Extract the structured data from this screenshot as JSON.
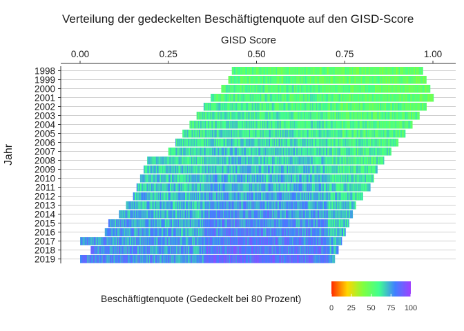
{
  "chart_data": {
    "type": "heatmap",
    "title": "Verteilung der gedeckelten Beschäftigtenquote auf den GISD-Score",
    "xlabel": "GISD Score",
    "ylabel": "Jahr",
    "xlim": [
      0,
      1
    ],
    "x_ticks": [
      "0.00",
      "0.25",
      "0.50",
      "0.75",
      "1.00"
    ],
    "x_tick_values": [
      0,
      0.25,
      0.5,
      0.75,
      1.0
    ],
    "x_axis_position": "top",
    "years": [
      "1998",
      "1999",
      "2000",
      "2001",
      "2002",
      "2003",
      "2004",
      "2005",
      "2006",
      "2007",
      "2008",
      "2009",
      "2010",
      "2011",
      "2012",
      "2013",
      "2014",
      "2015",
      "2016",
      "2017",
      "2018",
      "2019"
    ],
    "gisd_range_by_year": [
      [
        0.43,
        0.97
      ],
      [
        0.42,
        0.98
      ],
      [
        0.4,
        0.99
      ],
      [
        0.37,
        1.0
      ],
      [
        0.35,
        0.98
      ],
      [
        0.33,
        0.96
      ],
      [
        0.31,
        0.94
      ],
      [
        0.29,
        0.92
      ],
      [
        0.27,
        0.9
      ],
      [
        0.25,
        0.88
      ],
      [
        0.19,
        0.86
      ],
      [
        0.18,
        0.84
      ],
      [
        0.17,
        0.83
      ],
      [
        0.16,
        0.82
      ],
      [
        0.15,
        0.8
      ],
      [
        0.13,
        0.78
      ],
      [
        0.11,
        0.77
      ],
      [
        0.08,
        0.76
      ],
      [
        0.07,
        0.75
      ],
      [
        0.0,
        0.74
      ],
      [
        0.03,
        0.73
      ],
      [
        0.0,
        0.72
      ]
    ],
    "color_scale": {
      "title": "Beschäftigtenquote (Gedeckelt bei 80 Prozent)",
      "ticks": [
        "0",
        "25",
        "50",
        "75",
        "100"
      ],
      "range": [
        0,
        100
      ],
      "colors": [
        "#ff2a00",
        "#ffd500",
        "#80ff40",
        "#40ff90",
        "#4080ff",
        "#a040ff"
      ]
    },
    "legend_position": "bottom",
    "grid": true
  }
}
